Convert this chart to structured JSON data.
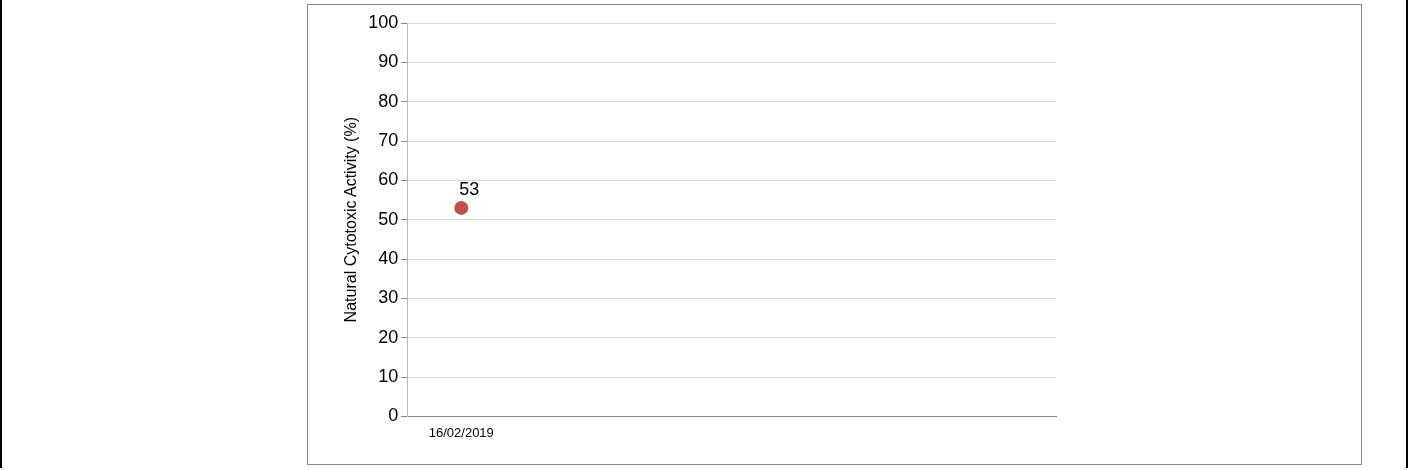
{
  "chart_data": {
    "type": "scatter",
    "ylabel": "Natural Cytotoxic Activity (%)",
    "categories": [
      "16/02/2019",
      null,
      null,
      null,
      null,
      null
    ],
    "series": [
      {
        "color": "#c0504d",
        "values": [
          53,
          null,
          null,
          null,
          null,
          null
        ]
      }
    ],
    "ylim": [
      0,
      100
    ],
    "yticks": [
      0,
      10,
      20,
      30,
      40,
      50,
      60,
      70,
      80,
      90,
      100
    ],
    "grid": "y",
    "marker": "circle",
    "data_labels": true
  }
}
